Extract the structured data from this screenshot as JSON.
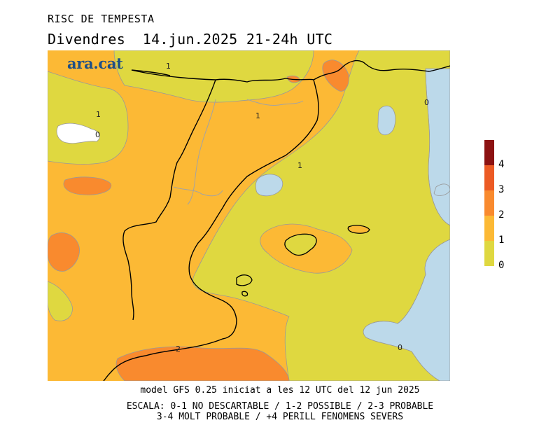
{
  "header": {
    "title": "RISC DE TEMPESTA",
    "subtitle": "Divendres  14.jun.2025 21-24h UTC"
  },
  "logo": {
    "text": "ara.cat"
  },
  "map": {
    "contour_labels": [
      "1",
      "1",
      "1",
      "1",
      "0",
      "0",
      "2",
      "0"
    ],
    "colors": {
      "sea": "#bcd9ea",
      "level_0_1": "#dfd840",
      "level_1_2": "#fcb935",
      "level_2_3": "#f98a2e",
      "level_3_4": "#ec5a24",
      "level_4_plus": "#8c1212"
    }
  },
  "legend": {
    "ticks": [
      "4",
      "3",
      "2",
      "1",
      "0"
    ],
    "colors": [
      "#8c1212",
      "#ec5a24",
      "#f98a2e",
      "#fcb935",
      "#dfd840"
    ]
  },
  "footer": {
    "model_line": "model GFS 0.25 iniciat a les 12 UTC del 12 jun 2025",
    "scale_line1": "ESCALA: 0-1 NO DESCARTABLE / 1-2 POSSIBLE / 2-3 PROBABLE",
    "scale_line2": "3-4 MOLT PROBABLE / +4 PERILL FENOMENS SEVERS"
  }
}
